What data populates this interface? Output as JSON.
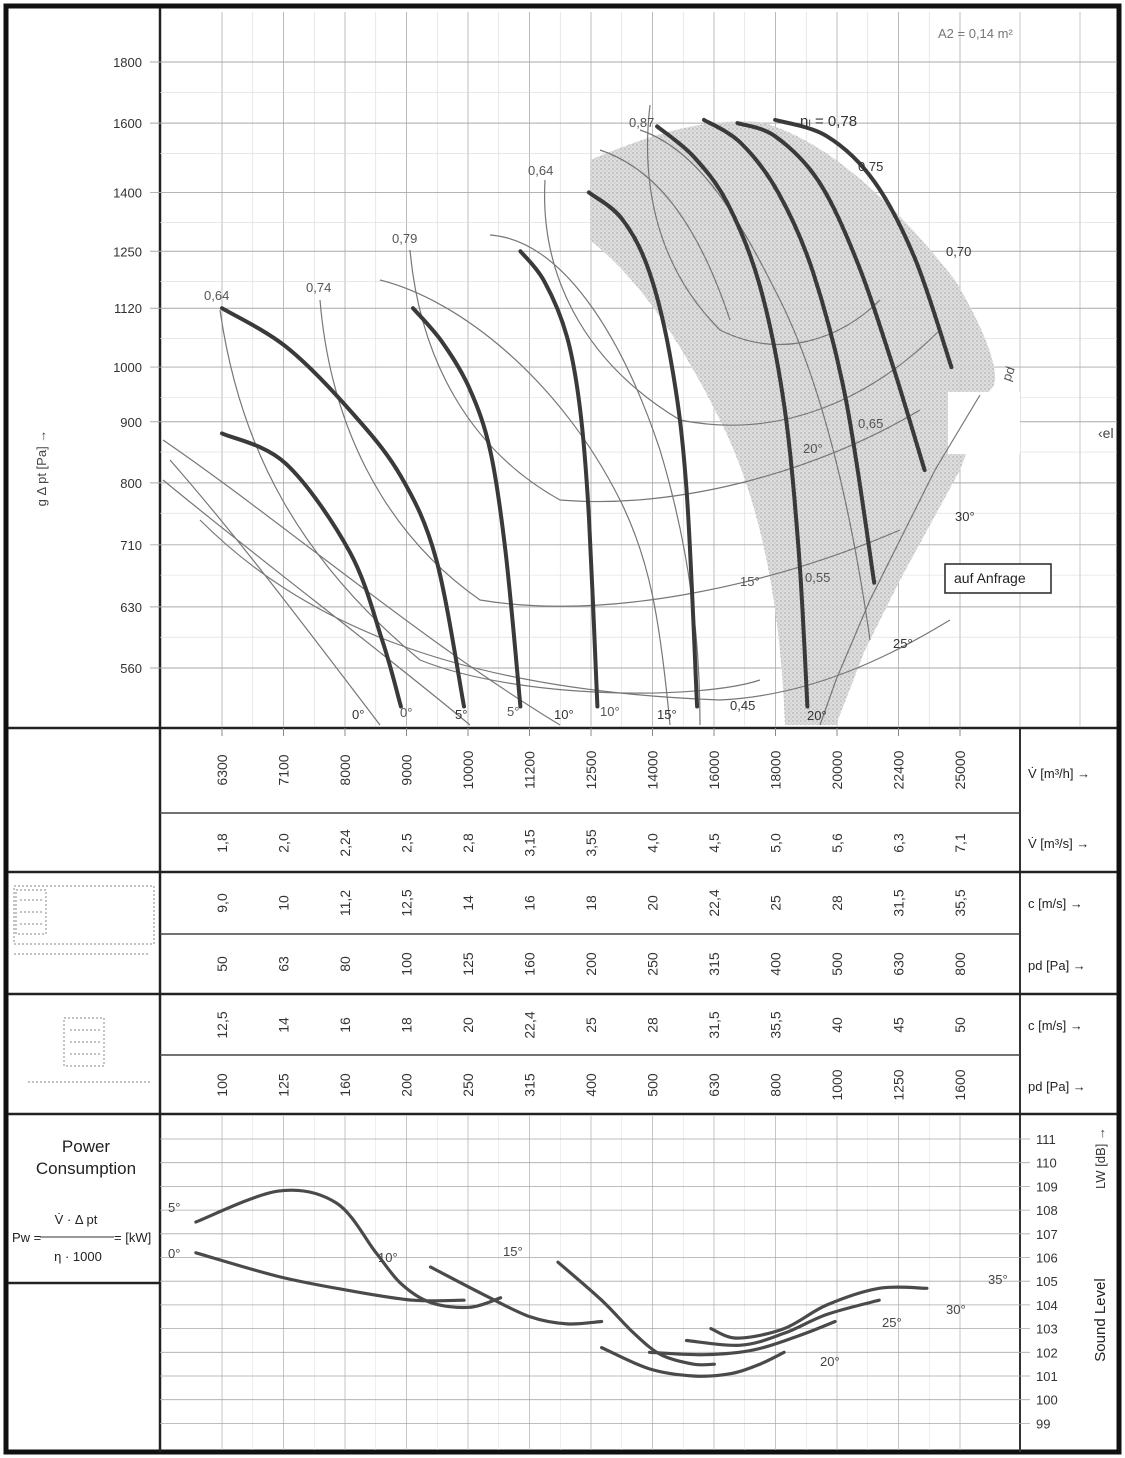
{
  "chart_data": {
    "type": "line",
    "title": "",
    "area_label": "A2 = 0,14 m²",
    "y_axis": {
      "label": "g  Δ pt [Pa] →",
      "ticks": [
        1800,
        1600,
        1400,
        1250,
        1120,
        1000,
        900,
        800,
        710,
        630,
        560
      ]
    },
    "x_axis": {
      "volume_flow_m3h": {
        "label": "V̇ [m³/h] →",
        "values": [
          "6300",
          "7100",
          "8000",
          "9000",
          "10000",
          "11200",
          "12500",
          "14000",
          "16000",
          "18000",
          "20000",
          "22400",
          "25000"
        ]
      },
      "volume_flow_m3s": {
        "label": "V̇ [m³/s] →",
        "values": [
          "1,8",
          "2,0",
          "2,24",
          "2,5",
          "2,8",
          "3,15",
          "3,55",
          "4,0",
          "4,5",
          "5,0",
          "5,6",
          "6,3",
          "7,1"
        ]
      },
      "outlet_a": {
        "c_label": "c [m/s] →",
        "c": [
          "9,0",
          "10",
          "11,2",
          "12,5",
          "14",
          "16",
          "18",
          "20",
          "22,4",
          "25",
          "28",
          "31,5",
          "35,5"
        ],
        "pd_label": "pd [Pa] →",
        "pd": [
          "50",
          "63",
          "80",
          "100",
          "125",
          "160",
          "200",
          "250",
          "315",
          "400",
          "500",
          "630",
          "800"
        ]
      },
      "outlet_b": {
        "c_label": "c [m/s] →",
        "c": [
          "12,5",
          "14",
          "16",
          "18",
          "20",
          "22,4",
          "25",
          "28",
          "31,5",
          "35,5",
          "40",
          "45",
          "50"
        ],
        "pd_label": "pd [Pa] →",
        "pd": [
          "100",
          "125",
          "160",
          "200",
          "250",
          "315",
          "400",
          "500",
          "630",
          "800",
          "1000",
          "1250",
          "1600"
        ]
      }
    },
    "pressure_curves": [
      {
        "angle": "0°",
        "label": "0°",
        "points": [
          [
            6300,
            880
          ],
          [
            7100,
            830
          ],
          [
            8000,
            700
          ],
          [
            8500,
            590
          ],
          [
            8800,
            520
          ]
        ]
      },
      {
        "angle": "0°",
        "label": "0°",
        "points": [
          [
            6300,
            1120
          ],
          [
            7100,
            1040
          ],
          [
            8000,
            920
          ],
          [
            8800,
            810
          ],
          [
            9400,
            690
          ],
          [
            9900,
            520
          ]
        ]
      },
      {
        "angle": "5°",
        "label": "5°",
        "points": [
          [
            9000,
            1120
          ],
          [
            9500,
            1050
          ],
          [
            10000,
            960
          ],
          [
            10400,
            850
          ],
          [
            10700,
            700
          ],
          [
            11000,
            520
          ]
        ]
      },
      {
        "angle": "10°",
        "label": "10°",
        "points": [
          [
            11000,
            1250
          ],
          [
            11500,
            1180
          ],
          [
            12000,
            1060
          ],
          [
            12300,
            920
          ],
          [
            12500,
            750
          ],
          [
            12700,
            520
          ]
        ]
      },
      {
        "angle": "15°",
        "label": "15°",
        "points": [
          [
            12500,
            1400
          ],
          [
            13300,
            1330
          ],
          [
            14000,
            1200
          ],
          [
            14600,
            1000
          ],
          [
            15000,
            790
          ],
          [
            15300,
            520
          ]
        ]
      },
      {
        "angle": "20°",
        "label": "20°",
        "points": [
          [
            14200,
            1590
          ],
          [
            15200,
            1500
          ],
          [
            16200,
            1370
          ],
          [
            17200,
            1170
          ],
          [
            18000,
            930
          ],
          [
            18500,
            700
          ],
          [
            18800,
            520
          ]
        ]
      },
      {
        "angle": "25°",
        "label": "25°",
        "points": [
          [
            15500,
            1610
          ],
          [
            16600,
            1540
          ],
          [
            17800,
            1400
          ],
          [
            19000,
            1200
          ],
          [
            20200,
            940
          ],
          [
            21300,
            660
          ]
        ]
      },
      {
        "angle": "30°",
        "label": "30°",
        "points": [
          [
            16500,
            1600
          ],
          [
            17700,
            1560
          ],
          [
            19200,
            1430
          ],
          [
            20600,
            1230
          ],
          [
            22000,
            1010
          ],
          [
            23400,
            820
          ]
        ]
      },
      {
        "angle": "35°",
        "label": "",
        "points": [
          [
            17700,
            1610
          ],
          [
            19500,
            1560
          ],
          [
            21300,
            1430
          ],
          [
            23000,
            1230
          ],
          [
            24600,
            1000
          ]
        ]
      }
    ],
    "efficiency_labels": [
      "0,64",
      "0,74",
      "0,79",
      "0,64",
      "0,87",
      "ηₗ = 0,78",
      "0,75",
      "0,70",
      "0,65",
      "0,55",
      "0,45"
    ],
    "angle_labels": [
      "0°",
      "0°",
      "5°",
      "5°",
      "10°",
      "10°",
      "15°",
      "15°",
      "20°",
      "20°",
      "25°",
      "30°",
      "pd"
    ],
    "annotation": "auf Anfrage",
    "side_fragment": "‹el",
    "power": {
      "title_line1": "Power",
      "title_line2": "Consumption",
      "formula_numerator": "V̇ · Δ pt",
      "formula_lhs": "Pw =",
      "formula_rhs": "= [kW]",
      "formula_denominator": "η · 1000"
    },
    "sound_level": {
      "label": "Sound Level",
      "unit": "LW [dB] →",
      "ticks": [
        "111",
        "110",
        "109",
        "108",
        "107",
        "106",
        "105",
        "104",
        "103",
        "102",
        "101",
        "100",
        "99"
      ],
      "series": [
        {
          "name": "5°",
          "points": [
            [
              6000,
              107.5
            ],
            [
              7000,
              108.8
            ],
            [
              7800,
              108.3
            ],
            [
              8400,
              106.2
            ],
            [
              8800,
              104.9
            ],
            [
              9300,
              104.1
            ],
            [
              10000,
              103.9
            ],
            [
              10600,
              104.3
            ]
          ]
        },
        {
          "name": "0°",
          "points": [
            [
              6000,
              106.2
            ],
            [
              7000,
              105.2
            ],
            [
              8000,
              104.6
            ],
            [
              9000,
              104.2
            ],
            [
              9900,
              104.2
            ]
          ]
        },
        {
          "name": "10°",
          "points": [
            [
              9300,
              105.6
            ],
            [
              10300,
              104.4
            ],
            [
              11200,
              103.5
            ],
            [
              12000,
              103.2
            ],
            [
              12800,
              103.3
            ]
          ]
        },
        {
          "name": "15°",
          "points": [
            [
              11800,
              105.8
            ],
            [
              12800,
              104.2
            ],
            [
              13600,
              102.8
            ],
            [
              14300,
              101.9
            ],
            [
              15200,
              101.5
            ],
            [
              15800,
              101.5
            ]
          ]
        },
        {
          "name": "20°",
          "points": [
            [
              12800,
              102.2
            ],
            [
              14000,
              101.3
            ],
            [
              15200,
              101.0
            ],
            [
              16300,
              101.1
            ],
            [
              17200,
              101.5
            ],
            [
              18000,
              102.0
            ]
          ]
        },
        {
          "name": "25°",
          "points": [
            [
              14000,
              102.0
            ],
            [
              15500,
              101.9
            ],
            [
              17000,
              102.1
            ],
            [
              18500,
              102.7
            ],
            [
              19800,
              103.3
            ]
          ]
        },
        {
          "name": "30°",
          "points": [
            [
              15000,
              102.5
            ],
            [
              16600,
              102.3
            ],
            [
              18000,
              102.8
            ],
            [
              19500,
              103.6
            ],
            [
              21500,
              104.2
            ]
          ]
        },
        {
          "name": "35°",
          "points": [
            [
              15700,
              103.0
            ],
            [
              16500,
              102.6
            ],
            [
              18000,
              103.0
            ],
            [
              19500,
              104.0
            ],
            [
              21500,
              104.7
            ],
            [
              23500,
              104.7
            ]
          ]
        }
      ]
    }
  }
}
